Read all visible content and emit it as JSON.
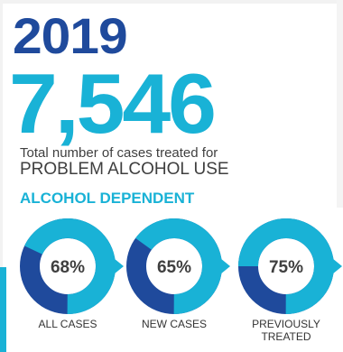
{
  "colors": {
    "dark_blue": "#1f4a9c",
    "light_blue": "#19b2d6",
    "text_gray": "#3f3f3f"
  },
  "header": {
    "year": "2019",
    "total": "7,546",
    "caption_line1": "Total number of cases treated for",
    "caption_line2": "PROBLEM ALCOHOL USE",
    "section_title": "ALCOHOL DEPENDENT"
  },
  "chart_data": {
    "type": "pie",
    "style": "donut",
    "title": "ALCOHOL DEPENDENT",
    "series": [
      {
        "category": "ALL CASES",
        "value": 68,
        "label": "68%"
      },
      {
        "category": "NEW CASES",
        "value": 65,
        "label": "65%"
      },
      {
        "category": "PREVIOUSLY TREATED",
        "value": 75,
        "label": "75%"
      }
    ],
    "unit": "%",
    "slice_colors": {
      "share": "#19b2d6",
      "remainder": "#1f4a9c"
    }
  }
}
